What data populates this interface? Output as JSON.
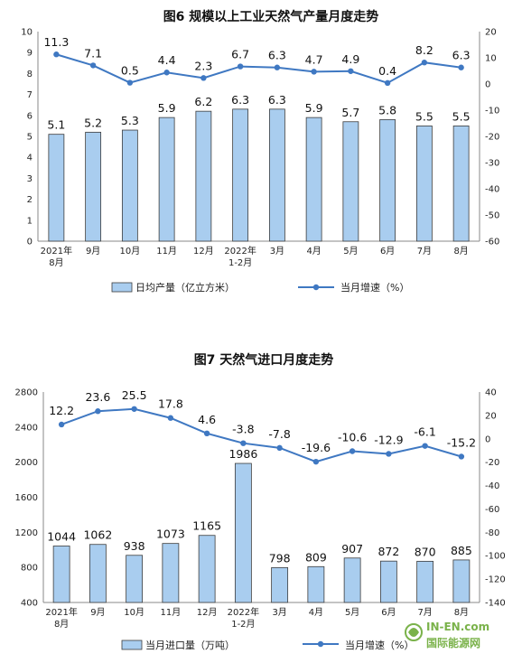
{
  "charts": [
    {
      "title": "图6  规模以上工业天然气产量月度走势",
      "categories": [
        [
          "2021年",
          "8月"
        ],
        [
          "9月"
        ],
        [
          "10月"
        ],
        [
          "11月"
        ],
        [
          "12月"
        ],
        [
          "2022年",
          "1-2月"
        ],
        [
          "3月"
        ],
        [
          "4月"
        ],
        [
          "5月"
        ],
        [
          "6月"
        ],
        [
          "7月"
        ],
        [
          "8月"
        ]
      ],
      "left_ticks": [
        "0",
        "1",
        "2",
        "3",
        "4",
        "5",
        "6",
        "7",
        "8",
        "9",
        "10"
      ],
      "right_ticks": [
        "20",
        "10",
        "0",
        "-10",
        "-20",
        "-30",
        "-40",
        "-50",
        "-60"
      ],
      "bar_labels": [
        "5.1",
        "5.2",
        "5.3",
        "5.9",
        "6.2",
        "6.3",
        "6.3",
        "5.9",
        "5.7",
        "5.8",
        "5.5",
        "5.5"
      ],
      "line_labels": [
        "11.3",
        "7.1",
        "0.5",
        "4.4",
        "2.3",
        "6.7",
        "6.3",
        "4.7",
        "4.9",
        "0.4",
        "8.2",
        "6.3"
      ],
      "legend_bar": "日均产量（亿立方米）",
      "legend_line": "当月增速（%）"
    },
    {
      "title": "图7  天然气进口月度走势",
      "categories": [
        [
          "2021年",
          "8月"
        ],
        [
          "9月"
        ],
        [
          "10月"
        ],
        [
          "11月"
        ],
        [
          "12月"
        ],
        [
          "2022年",
          "1-2月"
        ],
        [
          "3月"
        ],
        [
          "4月"
        ],
        [
          "5月"
        ],
        [
          "6月"
        ],
        [
          "7月"
        ],
        [
          "8月"
        ]
      ],
      "left_ticks": [
        "400",
        "800",
        "1200",
        "1600",
        "2000",
        "2400",
        "2800"
      ],
      "right_ticks": [
        "40",
        "20",
        "0",
        "-20",
        "-40",
        "-60",
        "-80",
        "-100",
        "-120",
        "-140"
      ],
      "bar_labels": [
        "1044",
        "1062",
        "938",
        "1073",
        "1165",
        "1986",
        "798",
        "809",
        "907",
        "872",
        "870",
        "885"
      ],
      "line_labels": [
        "12.2",
        "23.6",
        "25.5",
        "17.8",
        "4.6",
        "-3.8",
        "-7.8",
        "-19.6",
        "-10.6",
        "-12.9",
        "-6.1",
        "-15.2"
      ],
      "legend_bar": "当月进口量（万吨）",
      "legend_line": "当月增速（%）"
    }
  ],
  "watermark": {
    "line1": "IN-EN.com",
    "line2": "国际能源网"
  },
  "chart_data": [
    {
      "type": "bar",
      "title": "图6  规模以上工业天然气产量月度走势",
      "categories": [
        "2021年8月",
        "9月",
        "10月",
        "11月",
        "12月",
        "2022年1-2月",
        "3月",
        "4月",
        "5月",
        "6月",
        "7月",
        "8月"
      ],
      "series": [
        {
          "name": "日均产量（亿立方米）",
          "type": "bar",
          "axis": "left",
          "values": [
            5.1,
            5.2,
            5.3,
            5.9,
            6.2,
            6.3,
            6.3,
            5.9,
            5.7,
            5.8,
            5.5,
            5.5
          ]
        },
        {
          "name": "当月增速（%）",
          "type": "line",
          "axis": "right",
          "values": [
            11.3,
            7.1,
            0.5,
            4.4,
            2.3,
            6.7,
            6.3,
            4.7,
            4.9,
            0.4,
            8.2,
            6.3
          ]
        }
      ],
      "ylim_left": [
        0,
        10
      ],
      "ylim_right": [
        -60,
        20
      ],
      "legend": "bottom",
      "grid": false,
      "colors": {
        "bar": "#a9cdef",
        "line": "#3f78c2"
      }
    },
    {
      "type": "bar",
      "title": "图7  天然气进口月度走势",
      "categories": [
        "2021年8月",
        "9月",
        "10月",
        "11月",
        "12月",
        "2022年1-2月",
        "3月",
        "4月",
        "5月",
        "6月",
        "7月",
        "8月"
      ],
      "series": [
        {
          "name": "当月进口量（万吨）",
          "type": "bar",
          "axis": "left",
          "values": [
            1044,
            1062,
            938,
            1073,
            1165,
            1986,
            798,
            809,
            907,
            872,
            870,
            885
          ]
        },
        {
          "name": "当月增速（%）",
          "type": "line",
          "axis": "right",
          "values": [
            12.2,
            23.6,
            25.5,
            17.8,
            4.6,
            -3.8,
            -7.8,
            -19.6,
            -10.6,
            -12.9,
            -6.1,
            -15.2
          ]
        }
      ],
      "ylim_left": [
        400,
        2800
      ],
      "ylim_right": [
        -140,
        40
      ],
      "legend": "bottom",
      "grid": false,
      "colors": {
        "bar": "#a9cdef",
        "line": "#3f78c2"
      }
    }
  ]
}
